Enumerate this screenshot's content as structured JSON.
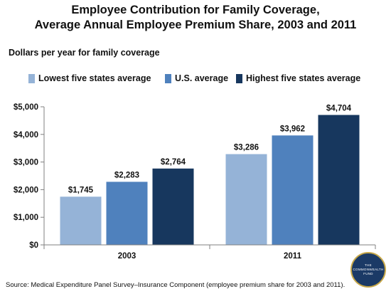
{
  "chart_data": {
    "type": "bar",
    "title_line1": "Employee Contribution for Family Coverage,",
    "title_line2": "Average Annual Employee Premium Share, 2003 and 2011",
    "subtitle": "Dollars per year for family coverage",
    "categories": [
      "2003",
      "2011"
    ],
    "series": [
      {
        "name": "Lowest five states average",
        "color": "#95b3d7",
        "values": [
          1745,
          3286
        ],
        "labels": [
          "$1,745",
          "$3,286"
        ]
      },
      {
        "name": "U.S. average",
        "color": "#4f81bd",
        "values": [
          2283,
          3962
        ],
        "labels": [
          "$2,283",
          "$3,962"
        ]
      },
      {
        "name": "Highest five states average",
        "color": "#17375e",
        "values": [
          2764,
          4704
        ],
        "labels": [
          "$2,764",
          "$4,704"
        ]
      }
    ],
    "ylim": [
      0,
      5000
    ],
    "yticks": [
      0,
      1000,
      2000,
      3000,
      4000,
      5000
    ],
    "ytick_labels": [
      "$0",
      "$1,000",
      "$2,000",
      "$3,000",
      "$4,000",
      "$5,000"
    ],
    "legend_position": "top",
    "grid": false
  },
  "source": "Source: Medical Expenditure Panel Survey–Insurance Component (employee premium share for 2003 and 2011).",
  "logo": {
    "line1": "THE",
    "line2": "COMMONWEALTH",
    "line3": "FUND"
  }
}
